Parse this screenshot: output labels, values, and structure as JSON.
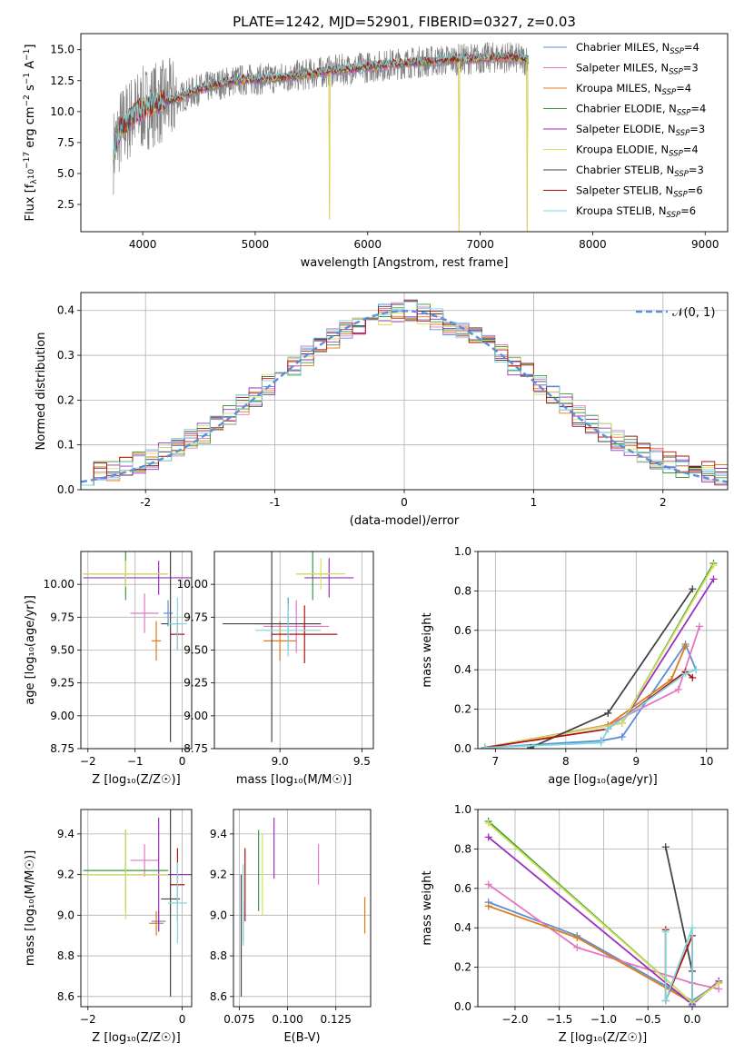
{
  "figure_title": "PLATE=1242, MJD=52901, FIBERID=0327, z=0.03",
  "models": [
    {
      "name": "Chabrier MILES, N",
      "sub": "SSP",
      "tail": "=4",
      "color": "#5b8fd8"
    },
    {
      "name": "Salpeter MILES, N",
      "sub": "SSP",
      "tail": "=3",
      "color": "#e377c2"
    },
    {
      "name": "Kroupa MILES, N",
      "sub": "SSP",
      "tail": "=4",
      "color": "#e07b1a"
    },
    {
      "name": "Chabrier ELODIE, N",
      "sub": "SSP",
      "tail": "=4",
      "color": "#3a9a3a"
    },
    {
      "name": "Salpeter ELODIE, N",
      "sub": "SSP",
      "tail": "=3",
      "color": "#9b30c0"
    },
    {
      "name": "Kroupa ELODIE, N",
      "sub": "SSP",
      "tail": "=4",
      "color": "#d4e05a"
    },
    {
      "name": "Chabrier STELIB, N",
      "sub": "SSP",
      "tail": "=3",
      "color": "#444444"
    },
    {
      "name": "Salpeter STELIB, N",
      "sub": "SSP",
      "tail": "=6",
      "color": "#b01010"
    },
    {
      "name": "Kroupa STELIB, N",
      "sub": "SSP",
      "tail": "=6",
      "color": "#7fd6dc"
    }
  ],
  "data_color": "#808080",
  "chart_data": [
    {
      "id": "spectrum",
      "type": "line",
      "xlabel": "wavelength [Angstrom, rest frame]",
      "ylabel_main": "Flux [f",
      "ylabel_sub": "λ",
      "ylabel_rest": "10",
      "ylabel_exp": "−17",
      "ylabel_unit": " erg cm",
      "ylabel_exp2": "−2",
      "ylabel_unit2": " s",
      "ylabel_exp3": "−1",
      "ylabel_unit3": " A",
      "ylabel_exp4": "−1",
      "ylabel_end": "]",
      "xlim": [
        3450,
        9200
      ],
      "ylim": [
        0.3,
        16.3
      ],
      "xticks": [
        4000,
        5000,
        6000,
        7000,
        8000,
        9000
      ],
      "yticks": [
        2.5,
        5.0,
        7.5,
        10.0,
        12.5,
        15.0
      ],
      "grid": false,
      "legend_position": "top-right",
      "continuum": [
        [
          3740,
          6.8
        ],
        [
          3800,
          8.5
        ],
        [
          3900,
          9.6
        ],
        [
          4000,
          10.2
        ],
        [
          4100,
          10.6
        ],
        [
          4300,
          11.0
        ],
        [
          4500,
          11.8
        ],
        [
          4800,
          12.5
        ],
        [
          5000,
          12.6
        ],
        [
          5300,
          12.8
        ],
        [
          5600,
          13.2
        ],
        [
          6000,
          13.6
        ],
        [
          6300,
          13.9
        ],
        [
          6600,
          14.1
        ],
        [
          7000,
          14.3
        ],
        [
          7200,
          14.4
        ],
        [
          7400,
          14.2
        ]
      ],
      "model_dips": [
        {
          "x": 5660,
          "y": 1.3
        },
        {
          "x": 6810,
          "y": 0.3
        },
        {
          "x": 7420,
          "y": 0.3
        }
      ]
    },
    {
      "id": "residuals",
      "type": "histogram",
      "xlabel": "(data-model)/error",
      "ylabel": "Normed distribution",
      "xlim": [
        -2.5,
        2.5
      ],
      "ylim": [
        0,
        0.44
      ],
      "xticks": [
        -2,
        -1,
        0,
        1,
        2
      ],
      "yticks": [
        0.0,
        0.1,
        0.2,
        0.3,
        0.4
      ],
      "grid": true,
      "legend_position": "top-right",
      "reference_label": "𝒩(0, 1)",
      "bin_width": 0.1,
      "base_shape": [
        0.035,
        0.038,
        0.045,
        0.052,
        0.06,
        0.07,
        0.082,
        0.095,
        0.11,
        0.125,
        0.145,
        0.165,
        0.19,
        0.21,
        0.235,
        0.26,
        0.28,
        0.3,
        0.32,
        0.34,
        0.355,
        0.37,
        0.38,
        0.39,
        0.4,
        0.4,
        0.39,
        0.38,
        0.37,
        0.355,
        0.34,
        0.32,
        0.3,
        0.28,
        0.26,
        0.235,
        0.21,
        0.19,
        0.165,
        0.145,
        0.125,
        0.11,
        0.095,
        0.082,
        0.07,
        0.06,
        0.052,
        0.045,
        0.038,
        0.035
      ]
    },
    {
      "id": "age-vs-Z",
      "type": "errorbar",
      "xlabel": "Z [log₁₀(Z/Z☉)]",
      "ylabel": "age  [log₁₀(age/yr)]",
      "xlim": [
        -2.15,
        0.2
      ],
      "ylim": [
        8.75,
        10.25
      ],
      "xticks": [
        -2,
        -1,
        0
      ],
      "xticklabels": [
        "−2",
        "−1",
        "0"
      ],
      "yticks": [
        8.75,
        9.0,
        9.25,
        9.5,
        9.75,
        10.0
      ],
      "yticklabels": [
        "8.75",
        "9.00",
        "9.25",
        "9.50",
        "9.75",
        "10.00"
      ],
      "grid": true,
      "points": [
        {
          "m": 0,
          "x": -0.3,
          "xerr": 0.1,
          "y": 9.78,
          "yerr": 0.1
        },
        {
          "m": 1,
          "x": -0.8,
          "xerr": 0.3,
          "y": 9.78,
          "yerr": 0.15
        },
        {
          "m": 2,
          "x": -0.55,
          "xerr": 0.1,
          "y": 9.57,
          "yerr": 0.15
        },
        {
          "m": 3,
          "x": -1.2,
          "xerr": 0.9,
          "y": 10.08,
          "yerr": 0.2
        },
        {
          "m": 4,
          "x": -0.5,
          "xerr": 1.6,
          "y": 10.05,
          "yerr": 0.13
        },
        {
          "m": 5,
          "x": -1.2,
          "xerr": 0.9,
          "y": 10.08,
          "yerr": 0.1
        },
        {
          "m": 6,
          "x": -0.25,
          "xerr": 0.2,
          "y": 9.7,
          "yerr": 0.9
        },
        {
          "m": 7,
          "x": -0.1,
          "xerr": 0.15,
          "y": 9.62,
          "yerr": 0.12
        },
        {
          "m": 8,
          "x": -0.1,
          "xerr": 0.2,
          "y": 9.7,
          "yerr": 0.2
        }
      ]
    },
    {
      "id": "age-vs-mass",
      "type": "errorbar",
      "xlabel": "mass [log₁₀(M/M☉)]",
      "ylabel": "",
      "xlim": [
        8.6,
        9.57
      ],
      "ylim": [
        8.75,
        10.25
      ],
      "xticks": [
        9.0,
        9.5
      ],
      "xticklabels": [
        "9.0",
        "9.5"
      ],
      "yticks": [
        8.75,
        9.0,
        9.25,
        9.5,
        9.75,
        10.0
      ],
      "yticklabels": [
        "8.75",
        "9.00",
        "9.25",
        "9.50",
        "9.75",
        "10.00"
      ],
      "grid": true,
      "points": [
        {
          "m": 0,
          "x": 9.05,
          "xerr": 0.2,
          "y": 9.7,
          "yerr": 0.2
        },
        {
          "m": 1,
          "x": 9.1,
          "xerr": 0.2,
          "y": 9.68,
          "yerr": 0.2
        },
        {
          "m": 2,
          "x": 9.0,
          "xerr": 0.1,
          "y": 9.57,
          "yerr": 0.15
        },
        {
          "m": 3,
          "x": 9.2,
          "xerr": 0.1,
          "y": 10.08,
          "yerr": 0.2
        },
        {
          "m": 4,
          "x": 9.3,
          "xerr": 0.15,
          "y": 10.05,
          "yerr": 0.15
        },
        {
          "m": 5,
          "x": 9.25,
          "xerr": 0.15,
          "y": 10.08,
          "yerr": 0.12
        },
        {
          "m": 6,
          "x": 8.95,
          "xerr": 0.3,
          "y": 9.7,
          "yerr": 0.9
        },
        {
          "m": 7,
          "x": 9.15,
          "xerr": 0.2,
          "y": 9.62,
          "yerr": 0.22
        },
        {
          "m": 8,
          "x": 9.05,
          "xerr": 0.2,
          "y": 9.65,
          "yerr": 0.2
        }
      ]
    },
    {
      "id": "weight-vs-age",
      "type": "line",
      "xlabel": "age  [log₁₀(age/yr)]",
      "ylabel": "mass weight",
      "xlim": [
        6.75,
        10.3
      ],
      "ylim": [
        0,
        1.0
      ],
      "xticks": [
        7,
        8,
        9,
        10
      ],
      "yticks": [
        0.0,
        0.2,
        0.4,
        0.6,
        0.8,
        1.0
      ],
      "grid": true,
      "series": [
        {
          "m": 0,
          "x": [
            6.85,
            8.5,
            8.8,
            9.7,
            9.85
          ],
          "y": [
            0.005,
            0.04,
            0.06,
            0.53,
            0.4
          ]
        },
        {
          "m": 1,
          "x": [
            6.85,
            8.6,
            9.6,
            9.9
          ],
          "y": [
            0.005,
            0.12,
            0.3,
            0.62
          ]
        },
        {
          "m": 2,
          "x": [
            6.85,
            8.6,
            9.5,
            9.7
          ],
          "y": [
            0.005,
            0.12,
            0.35,
            0.52
          ]
        },
        {
          "m": 3,
          "x": [
            6.85,
            8.8,
            10.1
          ],
          "y": [
            0.005,
            0.13,
            0.94
          ]
        },
        {
          "m": 4,
          "x": [
            6.85,
            8.8,
            10.1
          ],
          "y": [
            0.005,
            0.13,
            0.86
          ]
        },
        {
          "m": 5,
          "x": [
            6.85,
            8.8,
            10.1
          ],
          "y": [
            0.005,
            0.13,
            0.93
          ]
        },
        {
          "m": 6,
          "x": [
            7.5,
            8.6,
            9.8
          ],
          "y": [
            0.005,
            0.18,
            0.81
          ]
        },
        {
          "m": 7,
          "x": [
            6.85,
            8.6,
            9.7,
            9.8
          ],
          "y": [
            0.005,
            0.1,
            0.39,
            0.36
          ]
        },
        {
          "m": 8,
          "x": [
            6.85,
            8.5,
            8.6,
            9.7,
            9.85
          ],
          "y": [
            0.005,
            0.03,
            0.1,
            0.38,
            0.4
          ]
        }
      ]
    },
    {
      "id": "mass-vs-Z",
      "type": "errorbar",
      "xlabel": "Z [log₁₀(Z/Z☉)]",
      "ylabel": "mass [log₁₀(M/M☉)]",
      "xlim": [
        -2.15,
        0.2
      ],
      "ylim": [
        8.55,
        9.52
      ],
      "xticks": [
        -2,
        0
      ],
      "xticklabels": [
        "−2",
        "0"
      ],
      "yticks": [
        8.6,
        8.8,
        9.0,
        9.2,
        9.4
      ],
      "yticklabels": [
        "8.6",
        "8.8",
        "9.0",
        "9.2",
        "9.4"
      ],
      "grid": true,
      "points": [
        {
          "m": 0,
          "x": -0.5,
          "xerr": 0.15,
          "y": 8.97,
          "yerr": 0.05
        },
        {
          "m": 1,
          "x": -0.8,
          "xerr": 0.3,
          "y": 9.27,
          "yerr": 0.08
        },
        {
          "m": 2,
          "x": -0.55,
          "xerr": 0.15,
          "y": 8.96,
          "yerr": 0.06
        },
        {
          "m": 3,
          "x": -1.2,
          "xerr": 0.9,
          "y": 9.22,
          "yerr": 0.2
        },
        {
          "m": 4,
          "x": -0.5,
          "xerr": 1.6,
          "y": 9.2,
          "yerr": 0.28
        },
        {
          "m": 5,
          "x": -1.2,
          "xerr": 0.9,
          "y": 9.2,
          "yerr": 0.22
        },
        {
          "m": 6,
          "x": -0.25,
          "xerr": 0.2,
          "y": 9.08,
          "yerr": 0.48
        },
        {
          "m": 7,
          "x": -0.1,
          "xerr": 0.15,
          "y": 9.15,
          "yerr": 0.18
        },
        {
          "m": 8,
          "x": -0.1,
          "xerr": 0.2,
          "y": 9.06,
          "yerr": 0.2
        }
      ]
    },
    {
      "id": "mass-vs-EBV",
      "type": "errorbar",
      "xlabel": "E(B-V)",
      "ylabel": "",
      "xlim": [
        0.072,
        0.143
      ],
      "ylim": [
        8.55,
        9.52
      ],
      "xticks": [
        0.075,
        0.1,
        0.125
      ],
      "xticklabels": [
        "0.075",
        "0.100",
        "0.125"
      ],
      "yticks": [
        8.6,
        8.8,
        9.0,
        9.2,
        9.4
      ],
      "yticklabels": [
        "8.6",
        "8.8",
        "9.0",
        "9.2",
        "9.4"
      ],
      "grid": true,
      "points": [
        {
          "m": 0,
          "x": 0.077,
          "xerr": 0,
          "y": 8.97,
          "yerr": 0.1
        },
        {
          "m": 1,
          "x": 0.116,
          "xerr": 0,
          "y": 9.25,
          "yerr": 0.1
        },
        {
          "m": 2,
          "x": 0.14,
          "xerr": 0,
          "y": 9.0,
          "yerr": 0.09
        },
        {
          "m": 3,
          "x": 0.085,
          "xerr": 0,
          "y": 9.22,
          "yerr": 0.2
        },
        {
          "m": 4,
          "x": 0.093,
          "xerr": 0,
          "y": 9.33,
          "yerr": 0.15
        },
        {
          "m": 5,
          "x": 0.087,
          "xerr": 0,
          "y": 9.2,
          "yerr": 0.2
        },
        {
          "m": 6,
          "x": 0.076,
          "xerr": 0,
          "y": 8.9,
          "yerr": 0.3
        },
        {
          "m": 7,
          "x": 0.078,
          "xerr": 0,
          "y": 9.15,
          "yerr": 0.18
        },
        {
          "m": 8,
          "x": 0.077,
          "xerr": 0,
          "y": 9.05,
          "yerr": 0.2
        }
      ]
    },
    {
      "id": "weight-vs-Z",
      "type": "line",
      "xlabel": "Z [log₁₀(Z/Z☉)]",
      "ylabel": "mass weight",
      "xlim": [
        -2.42,
        0.4
      ],
      "ylim": [
        0,
        1.0
      ],
      "xticks": [
        -2.0,
        -1.5,
        -1.0,
        -0.5,
        0.0
      ],
      "xticklabels": [
        "−2.0",
        "−1.5",
        "−1.0",
        "−0.5",
        "0.0"
      ],
      "yticks": [
        0.0,
        0.2,
        0.4,
        0.6,
        0.8,
        1.0
      ],
      "grid": true,
      "series": [
        {
          "m": 0,
          "x": [
            -2.3,
            -1.3,
            0.0,
            0.3
          ],
          "y": [
            0.53,
            0.36,
            0.03,
            0.12
          ]
        },
        {
          "m": 1,
          "x": [
            -2.3,
            -1.3,
            0.0,
            0.3
          ],
          "y": [
            0.62,
            0.3,
            0.12,
            0.09
          ]
        },
        {
          "m": 2,
          "x": [
            -2.3,
            -1.3,
            0.0,
            0.3
          ],
          "y": [
            0.51,
            0.35,
            0.02,
            0.12
          ]
        },
        {
          "m": 3,
          "x": [
            -2.3,
            0.0,
            0.3
          ],
          "y": [
            0.94,
            0.02,
            0.12
          ]
        },
        {
          "m": 4,
          "x": [
            -2.3,
            0.0,
            0.3
          ],
          "y": [
            0.86,
            0.01,
            0.13
          ]
        },
        {
          "m": 5,
          "x": [
            -2.3,
            0.0,
            0.3
          ],
          "y": [
            0.93,
            0.02,
            0.12
          ]
        },
        {
          "m": 6,
          "x": [
            -0.3,
            0.0,
            0.0
          ],
          "y": [
            0.81,
            0.18,
            0.0
          ]
        },
        {
          "m": 7,
          "x": [
            -0.3,
            -0.3,
            0.0,
            0.0
          ],
          "y": [
            0.39,
            0.03,
            0.36,
            0.0
          ]
        },
        {
          "m": 8,
          "x": [
            -0.3,
            -0.3,
            0.0,
            0.0
          ],
          "y": [
            0.38,
            0.03,
            0.4,
            0.0
          ]
        }
      ]
    }
  ]
}
